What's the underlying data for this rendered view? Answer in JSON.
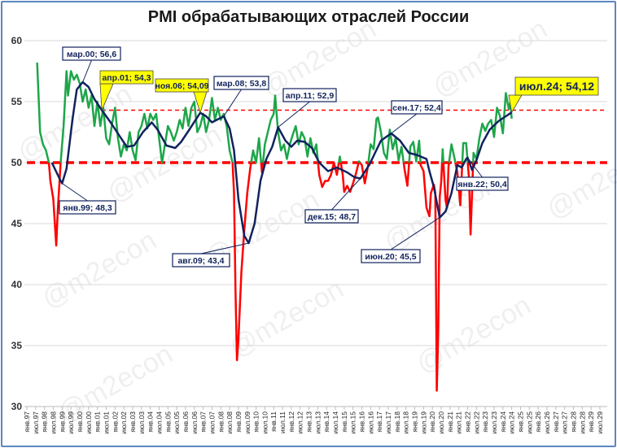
{
  "chart_data": {
    "type": "line",
    "title": "PMI обрабатывающих отраслей России",
    "ylim": [
      30,
      60
    ],
    "yticks": [
      30,
      35,
      40,
      45,
      50,
      55,
      60
    ],
    "xlim": [
      "1997-01",
      "2029-07"
    ],
    "grid": true,
    "xtick_labels": [
      "янв.97",
      "июл.97",
      "янв.98",
      "июл.98",
      "янв.99",
      "июл.99",
      "янв.00",
      "июл.00",
      "янв.01",
      "июл.01",
      "янв.02",
      "июл.02",
      "янв.03",
      "июл.03",
      "янв.04",
      "июл.04",
      "янв.05",
      "июл.05",
      "янв.06",
      "июл.06",
      "янв.07",
      "июл.07",
      "янв.08",
      "июл.08",
      "янв.09",
      "июл.09",
      "янв.10",
      "июл.10",
      "янв.11",
      "июл.11",
      "янв.12",
      "июл.12",
      "янв.13",
      "июл.13",
      "янв.14",
      "июл.14",
      "янв.15",
      "июл.15",
      "янв.16",
      "июл.16",
      "янв.17",
      "июл.17",
      "янв.18",
      "июл.18",
      "янв.19",
      "июл.19",
      "янв.20",
      "июл.20",
      "янв.21",
      "июл.21",
      "янв.22",
      "июл.22",
      "янв.23",
      "июл.23",
      "янв.24",
      "июл.24",
      "янв.25",
      "июл.25",
      "янв.26",
      "июл.26",
      "янв.27",
      "июл.27",
      "янв.28",
      "июл.28",
      "янв.29",
      "июл.29"
    ],
    "colors": {
      "above_50": "#1ea64a",
      "below_50": "#ff0000",
      "moving_average": "#11225e",
      "threshold": "#ff0000",
      "frame": "#5b87c0",
      "callout": "#ffff00"
    },
    "reference_lines": [
      {
        "value": 50,
        "style": "thick-dashed",
        "from": "1997-01"
      },
      {
        "value": 54.3,
        "style": "thin-dashed",
        "from": "2001-04"
      }
    ],
    "series": [
      {
        "role": "pmi-monthly",
        "points": [
          [
            "1997-08",
            58.2
          ],
          [
            "1997-10",
            52.5
          ],
          [
            "1997-12",
            51.5
          ],
          [
            "1998-02",
            51
          ],
          [
            "1998-04",
            50
          ],
          [
            "1998-05",
            48.5
          ],
          [
            "1998-07",
            47
          ],
          [
            "1998-09",
            43.2
          ],
          [
            "1998-10",
            46
          ],
          [
            "1998-12",
            50
          ],
          [
            "1999-02",
            53
          ],
          [
            "1999-04",
            57.5
          ],
          [
            "1999-05",
            55.5
          ],
          [
            "1999-07",
            57.5
          ],
          [
            "1999-09",
            56.8
          ],
          [
            "1999-11",
            57.2
          ],
          [
            "2000-01",
            56.5
          ],
          [
            "2000-03",
            55
          ],
          [
            "2000-05",
            56
          ],
          [
            "2000-07",
            54.5
          ],
          [
            "2000-09",
            55.5
          ],
          [
            "2000-11",
            53
          ],
          [
            "2001-01",
            55
          ],
          [
            "2001-03",
            53
          ],
          [
            "2001-05",
            54.5
          ],
          [
            "2001-07",
            52
          ],
          [
            "2001-09",
            51.5
          ],
          [
            "2001-11",
            53.2
          ],
          [
            "2002-01",
            54.5
          ],
          [
            "2002-03",
            52
          ],
          [
            "2002-05",
            50.5
          ],
          [
            "2002-07",
            51.5
          ],
          [
            "2002-09",
            51
          ],
          [
            "2002-11",
            52.5
          ],
          [
            "2003-01",
            51
          ],
          [
            "2003-03",
            50.2
          ],
          [
            "2003-05",
            52.5
          ],
          [
            "2003-07",
            53
          ],
          [
            "2003-09",
            54
          ],
          [
            "2003-11",
            52.8
          ],
          [
            "2004-01",
            54
          ],
          [
            "2004-03",
            53.5
          ],
          [
            "2004-05",
            54
          ],
          [
            "2004-07",
            52
          ],
          [
            "2004-09",
            50
          ],
          [
            "2004-11",
            51.5
          ],
          [
            "2005-01",
            53
          ],
          [
            "2005-03",
            52.5
          ],
          [
            "2005-05",
            51.8
          ],
          [
            "2005-07",
            52.5
          ],
          [
            "2005-09",
            53.5
          ],
          [
            "2005-11",
            52.8
          ],
          [
            "2006-01",
            54.5
          ],
          [
            "2006-03",
            53
          ],
          [
            "2006-05",
            54.5
          ],
          [
            "2006-07",
            55
          ],
          [
            "2006-09",
            52.5
          ],
          [
            "2006-11",
            53
          ],
          [
            "2007-01",
            54
          ],
          [
            "2007-03",
            52.5
          ],
          [
            "2007-05",
            53.5
          ],
          [
            "2007-07",
            55.3
          ],
          [
            "2007-09",
            53.5
          ],
          [
            "2007-11",
            54.5
          ],
          [
            "2008-01",
            53.5
          ],
          [
            "2008-03",
            54
          ],
          [
            "2008-05",
            53
          ],
          [
            "2008-07",
            51
          ],
          [
            "2008-09",
            50
          ],
          [
            "2008-10",
            47.5
          ],
          [
            "2008-11",
            39.5
          ],
          [
            "2008-12",
            33.8
          ],
          [
            "2009-01",
            35.5
          ],
          [
            "2009-03",
            41
          ],
          [
            "2009-05",
            44.5
          ],
          [
            "2009-07",
            47.5
          ],
          [
            "2009-09",
            49.5
          ],
          [
            "2009-11",
            51
          ],
          [
            "2010-01",
            50
          ],
          [
            "2010-03",
            52
          ],
          [
            "2010-05",
            49.2
          ],
          [
            "2010-07",
            51.5
          ],
          [
            "2010-09",
            52.5
          ],
          [
            "2010-11",
            53.5
          ],
          [
            "2011-01",
            54
          ],
          [
            "2011-02",
            55.5
          ],
          [
            "2011-04",
            52.5
          ],
          [
            "2011-06",
            51
          ],
          [
            "2011-08",
            51.5
          ],
          [
            "2011-10",
            50.3
          ],
          [
            "2011-12",
            51.5
          ],
          [
            "2012-02",
            52.3
          ],
          [
            "2012-04",
            53
          ],
          [
            "2012-06",
            51.5
          ],
          [
            "2012-08",
            52.5
          ],
          [
            "2012-10",
            52
          ],
          [
            "2012-12",
            50.5
          ],
          [
            "2013-02",
            52
          ],
          [
            "2013-04",
            50.8
          ],
          [
            "2013-06",
            51.5
          ],
          [
            "2013-08",
            49
          ],
          [
            "2013-10",
            48
          ],
          [
            "2013-12",
            48.5
          ],
          [
            "2014-02",
            48.5
          ],
          [
            "2014-04",
            49
          ],
          [
            "2014-06",
            50
          ],
          [
            "2014-08",
            49
          ],
          [
            "2014-10",
            50.5
          ],
          [
            "2014-12",
            49
          ],
          [
            "2015-01",
            47.6
          ],
          [
            "2015-03",
            48.1
          ],
          [
            "2015-05",
            47.6
          ],
          [
            "2015-07",
            48.3
          ],
          [
            "2015-09",
            49.1
          ],
          [
            "2015-11",
            50.1
          ],
          [
            "2016-01",
            49.8
          ],
          [
            "2016-03",
            48.3
          ],
          [
            "2016-05",
            49.6
          ],
          [
            "2016-07",
            51.5
          ],
          [
            "2016-09",
            51.1
          ],
          [
            "2016-11",
            53.6
          ],
          [
            "2016-12",
            53.7
          ],
          [
            "2017-02",
            52.5
          ],
          [
            "2017-04",
            50.8
          ],
          [
            "2017-06",
            50.3
          ],
          [
            "2017-08",
            52.7
          ],
          [
            "2017-10",
            51.1
          ],
          [
            "2017-12",
            52
          ],
          [
            "2018-02",
            50.2
          ],
          [
            "2018-04",
            51.3
          ],
          [
            "2018-06",
            49.5
          ],
          [
            "2018-08",
            48.1
          ],
          [
            "2018-10",
            51.3
          ],
          [
            "2018-12",
            51.7
          ],
          [
            "2019-02",
            50.1
          ],
          [
            "2019-04",
            51.8
          ],
          [
            "2019-05",
            49.8
          ],
          [
            "2019-07",
            49.3
          ],
          [
            "2019-09",
            46.3
          ],
          [
            "2019-11",
            45.6
          ],
          [
            "2019-12",
            47.5
          ],
          [
            "2020-02",
            48.2
          ],
          [
            "2020-03",
            47.5
          ],
          [
            "2020-04",
            31.3
          ],
          [
            "2020-05",
            36.2
          ],
          [
            "2020-06",
            47.2
          ],
          [
            "2020-07",
            48.4
          ],
          [
            "2020-08",
            51.1
          ],
          [
            "2020-09",
            48.9
          ],
          [
            "2020-10",
            46.9
          ],
          [
            "2020-11",
            46.3
          ],
          [
            "2020-12",
            49.7
          ],
          [
            "2021-02",
            51.5
          ],
          [
            "2021-04",
            50.4
          ],
          [
            "2021-06",
            49.2
          ],
          [
            "2021-08",
            46.5
          ],
          [
            "2021-10",
            51.6
          ],
          [
            "2021-12",
            51.6
          ],
          [
            "2022-02",
            48.6
          ],
          [
            "2022-03",
            44.1
          ],
          [
            "2022-05",
            50.8
          ],
          [
            "2022-07",
            50.3
          ],
          [
            "2022-09",
            52
          ],
          [
            "2022-11",
            53.2
          ],
          [
            "2023-01",
            52.6
          ],
          [
            "2023-03",
            53.2
          ],
          [
            "2023-05",
            53.5
          ],
          [
            "2023-07",
            52.1
          ],
          [
            "2023-09",
            54.5
          ],
          [
            "2023-11",
            53.8
          ],
          [
            "2024-01",
            52.4
          ],
          [
            "2024-03",
            55.7
          ],
          [
            "2024-05",
            54.4
          ],
          [
            "2024-06",
            54.9
          ],
          [
            "2024-07",
            53.6
          ]
        ]
      },
      {
        "role": "moving-average",
        "points": [
          [
            "1998-06",
            50
          ],
          [
            "1998-12",
            48.5
          ],
          [
            "1999-01",
            48.3
          ],
          [
            "1999-04",
            49.5
          ],
          [
            "1999-08",
            53.5
          ],
          [
            "1999-11",
            56
          ],
          [
            "2000-03",
            56.6
          ],
          [
            "2000-07",
            56.2
          ],
          [
            "2000-11",
            55.2
          ],
          [
            "2001-04",
            54.3
          ],
          [
            "2001-10",
            53.3
          ],
          [
            "2002-04",
            52.2
          ],
          [
            "2002-09",
            51.3
          ],
          [
            "2003-02",
            51.4
          ],
          [
            "2003-08",
            52.5
          ],
          [
            "2004-02",
            53.3
          ],
          [
            "2004-06",
            52.7
          ],
          [
            "2004-12",
            51.4
          ],
          [
            "2005-06",
            51.2
          ],
          [
            "2005-10",
            51.7
          ],
          [
            "2006-03",
            52.6
          ],
          [
            "2006-11",
            54.09
          ],
          [
            "2007-03",
            53.8
          ],
          [
            "2007-07",
            53.3
          ],
          [
            "2008-03",
            53.8
          ],
          [
            "2008-07",
            52.8
          ],
          [
            "2008-10",
            51
          ],
          [
            "2009-01",
            47
          ],
          [
            "2009-05",
            44
          ],
          [
            "2009-08",
            43.4
          ],
          [
            "2009-12",
            45
          ],
          [
            "2010-04",
            48.5
          ],
          [
            "2010-08",
            50.3
          ],
          [
            "2010-12",
            51.3
          ],
          [
            "2011-04",
            52.9
          ],
          [
            "2011-09",
            51.8
          ],
          [
            "2012-01",
            51.3
          ],
          [
            "2012-05",
            51.8
          ],
          [
            "2012-10",
            51.7
          ],
          [
            "2013-03",
            51.2
          ],
          [
            "2013-08",
            50
          ],
          [
            "2014-02",
            49.3
          ],
          [
            "2014-08",
            49.6
          ],
          [
            "2015-03",
            49.2
          ],
          [
            "2015-08",
            48.8
          ],
          [
            "2015-12",
            48.7
          ],
          [
            "2016-06",
            49.8
          ],
          [
            "2017-02",
            51.8
          ],
          [
            "2017-09",
            52.4
          ],
          [
            "2018-03",
            51.8
          ],
          [
            "2018-09",
            50.8
          ],
          [
            "2019-03",
            50.6
          ],
          [
            "2019-09",
            50.3
          ],
          [
            "2019-11",
            49.3
          ],
          [
            "2020-02",
            48
          ],
          [
            "2020-06",
            45.5
          ],
          [
            "2020-10",
            46
          ],
          [
            "2021-02",
            47.5
          ],
          [
            "2021-06",
            49.8
          ],
          [
            "2021-09",
            49.6
          ],
          [
            "2021-12",
            50.3
          ],
          [
            "2022-01",
            50.4
          ],
          [
            "2022-04",
            49.4
          ],
          [
            "2022-07",
            50.2
          ],
          [
            "2022-11",
            51.6
          ],
          [
            "2023-04",
            52.7
          ],
          [
            "2023-10",
            53.4
          ],
          [
            "2024-03",
            53.8
          ],
          [
            "2024-07",
            54.12
          ]
        ]
      }
    ],
    "annotations": [
      {
        "label": "мар.00; 56,6",
        "date": "2000-03",
        "value": 56.6,
        "style": "box"
      },
      {
        "label": "янв.99; 48,3",
        "date": "1999-01",
        "value": 48.3,
        "style": "box"
      },
      {
        "label": "апр.01; 54,3",
        "date": "2001-04",
        "value": 54.3,
        "style": "callout"
      },
      {
        "label": "ноя.06; 54,09",
        "date": "2006-11",
        "value": 54.09,
        "style": "callout"
      },
      {
        "label": "мар.08; 53,8",
        "date": "2008-03",
        "value": 53.8,
        "style": "box"
      },
      {
        "label": "авг.09; 43,4",
        "date": "2009-08",
        "value": 43.4,
        "style": "box"
      },
      {
        "label": "апр.11; 52,9",
        "date": "2011-04",
        "value": 52.9,
        "style": "box"
      },
      {
        "label": "дек.15; 48,7",
        "date": "2015-12",
        "value": 48.7,
        "style": "box"
      },
      {
        "label": "сен.17; 52,4",
        "date": "2017-09",
        "value": 52.4,
        "style": "box"
      },
      {
        "label": "июн.20; 45,5",
        "date": "2020-06",
        "value": 45.5,
        "style": "box"
      },
      {
        "label": "янв.22; 50,4",
        "date": "2022-01",
        "value": 50.4,
        "style": "box"
      },
      {
        "label": "июл.24; 54,12",
        "date": "2024-07",
        "value": 54.12,
        "style": "callout-large"
      }
    ],
    "watermark": "@m2econ"
  }
}
